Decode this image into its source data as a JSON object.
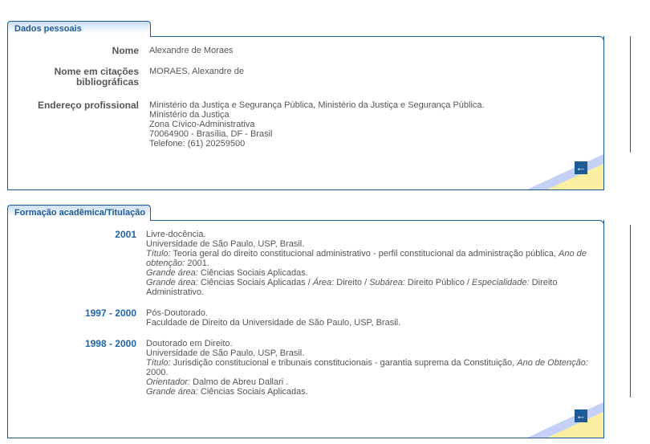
{
  "dados": {
    "tab": "Dados pessoais",
    "fields": [
      {
        "label": "Nome",
        "value": [
          "Alexandre de Moraes"
        ]
      },
      {
        "label": "Nome em citações bibliográficas",
        "value": [
          "MORAES, Alexandre de"
        ]
      },
      {
        "label": "Endereço profissional",
        "value": [
          "Ministério da Justiça e Segurança Pública, Ministério da Justiça e Segurança Pública.",
          "Ministério da Justiça",
          "Zona Cívico-Administrativa",
          "70064900 - Brasília, DF - Brasil",
          "Telefone: (61) 20259500"
        ]
      }
    ],
    "back_icon": "arrow-left-icon"
  },
  "formacao": {
    "tab": "Formação acadêmica/Titulação",
    "entries": [
      {
        "year": "2001",
        "lines": [
          [
            {
              "t": "Livre-docência."
            }
          ],
          [
            {
              "t": "Universidade de São Paulo, USP, Brasil."
            }
          ],
          [
            {
              "t": "Título:",
              "i": true
            },
            {
              "t": " Teoria geral do direito constitucional administrativo - perfil constitucional da administração pública, "
            },
            {
              "t": "Ano de obtenção:",
              "i": true
            },
            {
              "t": " 2001."
            }
          ],
          [
            {
              "t": "Grande área:",
              "i": true
            },
            {
              "t": " Ciências Sociais Aplicadas."
            }
          ],
          [
            {
              "t": "Grande área:",
              "i": true
            },
            {
              "t": " Ciências Sociais Aplicadas / "
            },
            {
              "t": "Área:",
              "i": true
            },
            {
              "t": " Direito / "
            },
            {
              "t": "Subárea:",
              "i": true
            },
            {
              "t": " Direito Público / "
            },
            {
              "t": "Especialidade:",
              "i": true
            },
            {
              "t": " Direito Administrativo."
            }
          ]
        ]
      },
      {
        "year": "1997 - 2000",
        "lines": [
          [
            {
              "t": "Pós-Doutorado."
            }
          ],
          [
            {
              "t": "Faculdade de Direito da Universidade de São Paulo, USP, Brasil."
            }
          ]
        ]
      },
      {
        "year": "1998 - 2000",
        "lines": [
          [
            {
              "t": "Doutorado em Direito."
            }
          ],
          [
            {
              "t": "Universidade de São Paulo, USP, Brasil."
            }
          ],
          [
            {
              "t": "Título:",
              "i": true
            },
            {
              "t": " Jurisdição constitucional e tribunais constitucionais - garantia suprema da Constituição, "
            },
            {
              "t": "Ano de Obtenção:",
              "i": true
            },
            {
              "t": " 2000."
            }
          ],
          [
            {
              "t": "Orientador:",
              "i": true
            },
            {
              "t": " Dalmo de Abreu Dallari ."
            }
          ],
          [
            {
              "t": "Grande área:",
              "i": true
            },
            {
              "t": " Ciências Sociais Aplicadas."
            }
          ]
        ]
      }
    ],
    "back_icon": "arrow-left-icon"
  },
  "colors": {
    "accent": "#1d5a96",
    "year": "#1d66a6",
    "text": "#555555"
  }
}
